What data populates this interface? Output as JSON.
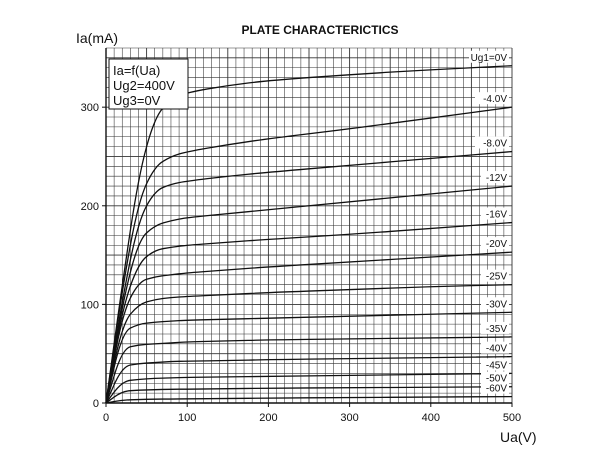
{
  "chart_data": {
    "type": "line",
    "title": "PLATE CHARACTERICTICS",
    "xlabel": "Ua(V)",
    "ylabel": "Ia(mA)",
    "xlim": [
      0,
      500
    ],
    "ylim": [
      0,
      360
    ],
    "x_ticks": [
      0,
      100,
      200,
      300,
      400,
      500
    ],
    "y_ticks": [
      0,
      100,
      200,
      300
    ],
    "grid": true,
    "legend_box_lines": [
      "Ia=f(Ua)",
      "Ug2=400V",
      "Ug3=0V"
    ],
    "legend_placement": "top-left",
    "series": [
      {
        "name": "Ug1=0V",
        "x": [
          0,
          20,
          40,
          60,
          80,
          100,
          150,
          200,
          300,
          400,
          500
        ],
        "y": [
          0,
          120,
          230,
          290,
          308,
          315,
          322,
          327,
          333,
          338,
          342
        ]
      },
      {
        "name": "-4.0V",
        "x": [
          0,
          20,
          40,
          60,
          80,
          100,
          150,
          200,
          300,
          400,
          500
        ],
        "y": [
          0,
          115,
          205,
          240,
          250,
          255,
          262,
          268,
          278,
          289,
          300
        ]
      },
      {
        "name": "-8.0V",
        "x": [
          0,
          20,
          40,
          60,
          80,
          100,
          150,
          200,
          300,
          400,
          500
        ],
        "y": [
          0,
          105,
          185,
          215,
          222,
          225,
          230,
          234,
          241,
          248,
          255
        ]
      },
      {
        "name": "-12V",
        "x": [
          0,
          20,
          40,
          60,
          80,
          100,
          150,
          200,
          300,
          400,
          500
        ],
        "y": [
          0,
          100,
          165,
          180,
          185,
          188,
          192,
          196,
          204,
          212,
          220
        ]
      },
      {
        "name": "-16V",
        "x": [
          0,
          20,
          40,
          60,
          80,
          100,
          150,
          200,
          300,
          400,
          500
        ],
        "y": [
          0,
          95,
          142,
          155,
          158,
          160,
          163,
          166,
          171,
          177,
          183
        ]
      },
      {
        "name": "-20V",
        "x": [
          0,
          20,
          40,
          60,
          80,
          100,
          150,
          200,
          300,
          400,
          500
        ],
        "y": [
          0,
          90,
          123,
          128,
          130,
          132,
          135,
          138,
          143,
          148,
          153
        ]
      },
      {
        "name": "-25V",
        "x": [
          0,
          20,
          40,
          60,
          80,
          100,
          150,
          200,
          300,
          400,
          500
        ],
        "y": [
          0,
          80,
          100,
          105,
          107,
          108,
          110,
          112,
          115,
          118,
          120
        ]
      },
      {
        "name": "-30V",
        "x": [
          0,
          20,
          40,
          60,
          80,
          100,
          150,
          200,
          300,
          400,
          500
        ],
        "y": [
          0,
          72,
          80,
          82,
          83,
          84,
          85,
          86,
          88,
          90,
          92
        ]
      },
      {
        "name": "-35V",
        "x": [
          0,
          20,
          40,
          60,
          80,
          100,
          150,
          200,
          300,
          400,
          500
        ],
        "y": [
          0,
          55,
          59,
          60,
          61,
          62,
          63,
          64,
          65,
          66,
          67
        ]
      },
      {
        "name": "-40V",
        "x": [
          0,
          20,
          40,
          60,
          80,
          100,
          150,
          200,
          300,
          400,
          500
        ],
        "y": [
          0,
          37,
          40,
          41,
          42,
          42.5,
          43,
          44,
          45,
          46,
          47
        ]
      },
      {
        "name": "-45V",
        "x": [
          0,
          20,
          40,
          60,
          80,
          100,
          150,
          200,
          300,
          400,
          500
        ],
        "y": [
          0,
          22,
          24,
          25,
          25.5,
          26,
          26.5,
          27,
          28,
          29,
          30
        ]
      },
      {
        "name": "-50V",
        "x": [
          0,
          20,
          40,
          60,
          80,
          100,
          150,
          200,
          300,
          400,
          500
        ],
        "y": [
          0,
          12,
          13,
          13.5,
          14,
          14,
          14.5,
          15,
          15.5,
          16,
          16.5
        ]
      },
      {
        "name": "-60V",
        "x": [
          0,
          20,
          40,
          60,
          80,
          100,
          150,
          200,
          300,
          400,
          500
        ],
        "y": [
          0,
          3,
          3.5,
          4,
          4,
          4.2,
          4.5,
          5,
          5.5,
          6,
          6.5
        ]
      }
    ]
  }
}
